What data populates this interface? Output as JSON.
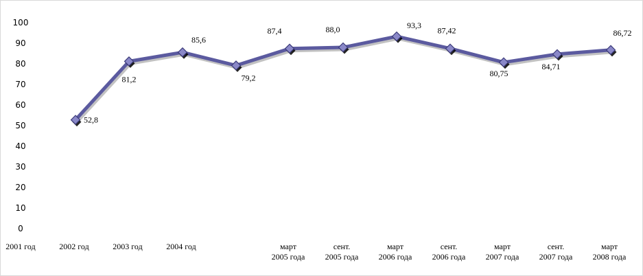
{
  "chart_data": {
    "type": "line",
    "categories": [
      [
        "2001 год"
      ],
      [
        "2002 год"
      ],
      [
        "2003 год"
      ],
      [
        "2004 год"
      ],
      [
        ""
      ],
      [
        "март",
        "2005 года"
      ],
      [
        "сент.",
        "2005 года"
      ],
      [
        "март",
        "2006 года"
      ],
      [
        "сент.",
        "2006 года"
      ],
      [
        "март",
        "2007 года"
      ],
      [
        "сент.",
        "2007 года"
      ],
      [
        "март",
        "2008 года"
      ]
    ],
    "series": [
      {
        "values": [
          null,
          52.8,
          81.2,
          85.6,
          79.2,
          87.4,
          88.0,
          93.3,
          87.42,
          80.75,
          84.71,
          86.72
        ],
        "data_labels": [
          null,
          "52,8",
          "81,2",
          "85,6",
          "79,2",
          "87,4",
          "88,0",
          "93,3",
          "87,42",
          "80,75",
          "84,71",
          "86,72"
        ],
        "color": "#5b5a9f"
      }
    ],
    "yticks": [
      "0",
      "10",
      "20",
      "30",
      "40",
      "50",
      "60",
      "70",
      "80",
      "90",
      "100"
    ],
    "ylim": [
      0,
      100
    ],
    "grid": false,
    "legend": "none"
  }
}
